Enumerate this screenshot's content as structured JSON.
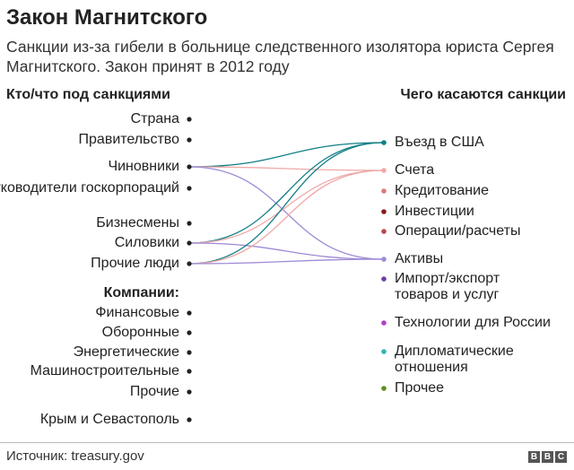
{
  "title": "Закон Магнитского",
  "subtitle": "Санкции из-за гибели в больнице следственного изолятора юриста Сергея Магнитского. Закон принят в 2012 году",
  "left_header": "Кто/что под санкциями",
  "right_header": "Чего касаются санкции",
  "companies_header": "Компании:",
  "left_items": [
    "Страна",
    "Правительство",
    "Чиновники",
    "Руководители госкорпораций",
    "Бизнесмены",
    "Силовики",
    "Прочие люди"
  ],
  "company_items": [
    "Финансовые",
    "Оборонные",
    "Энергетические",
    "Машиностроительные",
    "Прочие",
    "Крым и Севастополь"
  ],
  "right_items": [
    "Въезд в США",
    "Счета",
    "Кредитование",
    "Инвестиции",
    "Операции/расчеты",
    "Активы",
    "Импорт/экспорт товаров и услуг",
    "Технологии для России",
    "Дипломатические отношения",
    "Прочее"
  ],
  "right_colors": [
    "#127e86",
    "#f0a8a8",
    "#d97a7a",
    "#8b1a1a",
    "#b8474f",
    "#9e8ad6",
    "#6b3fa0",
    "#b33cc9",
    "#2fb6b0",
    "#5a8f1e"
  ],
  "links": [
    {
      "from": "Чиновники",
      "to": "Въезд в США",
      "color": "#127e86"
    },
    {
      "from": "Чиновники",
      "to": "Счета",
      "color": "#f0a8a8"
    },
    {
      "from": "Чиновники",
      "to": "Активы",
      "color": "#9e8ad6"
    },
    {
      "from": "Силовики",
      "to": "Въезд в США",
      "color": "#127e86"
    },
    {
      "from": "Силовики",
      "to": "Счета",
      "color": "#f0a8a8"
    },
    {
      "from": "Силовики",
      "to": "Активы",
      "color": "#9e8ad6"
    },
    {
      "from": "Прочие люди",
      "to": "Въезд в США",
      "color": "#127e86"
    },
    {
      "from": "Прочие люди",
      "to": "Счета",
      "color": "#f0a8a8"
    },
    {
      "from": "Прочие люди",
      "to": "Активы",
      "color": "#9e8ad6"
    }
  ],
  "source": "Источник: treasury.gov",
  "logo": [
    "B",
    "B",
    "C"
  ]
}
